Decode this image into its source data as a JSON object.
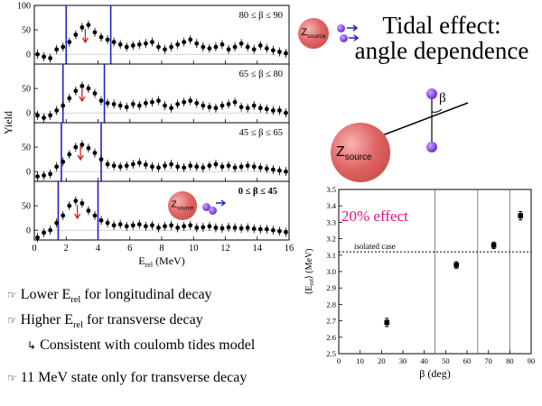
{
  "title": {
    "line1": "Tidal effect:",
    "line2": "angle dependence"
  },
  "sketch": {
    "source_label_main": "Z",
    "source_label_sub": "source",
    "angle_symbol": "β"
  },
  "bullets": [
    {
      "symbol": "☞",
      "pre": "Lower E",
      "sub": "rel",
      "post": " for longitudinal decay",
      "indent": false
    },
    {
      "symbol": "☞",
      "pre": "Higher E",
      "sub": "rel",
      "post": " for transverse decay",
      "indent": false
    },
    {
      "symbol": "↳",
      "pre": "Consistent with coulomb tides model",
      "sub": "",
      "post": "",
      "indent": true
    },
    {
      "symbol": "☞",
      "pre": "11 MeV state only for transverse decay",
      "sub": "",
      "post": "",
      "indent": false
    }
  ],
  "colors": {
    "vline": "#1f1fd6",
    "arrow": "#d42020",
    "annotation": "#e0147a",
    "ball": "#d9534f",
    "dot": "#7a3fd9"
  },
  "chart_data": [
    {
      "type": "scatter",
      "ylabel": "Yield",
      "xlabel_main": "E",
      "xlabel_sub": "rel",
      "xlabel_unit": " (MeV)",
      "xlim": [
        0,
        16
      ],
      "xticks": [
        0,
        2,
        4,
        6,
        8,
        10,
        12,
        14,
        16
      ],
      "vlines": [
        1.5,
        4.2
      ],
      "panels": [
        {
          "label": "80 ≤ β ≤ 90",
          "ylim": [
            -20,
            100
          ],
          "yticks": [
            0,
            50,
            100
          ],
          "vlines": [
            2.0,
            4.8
          ],
          "arrow_x": 3.2,
          "x": [
            0.2,
            0.6,
            1.0,
            1.4,
            1.8,
            2.2,
            2.6,
            3.0,
            3.4,
            3.8,
            4.2,
            4.6,
            5.0,
            5.4,
            5.8,
            6.2,
            6.6,
            7.0,
            7.4,
            7.8,
            8.2,
            8.6,
            9.0,
            9.4,
            9.8,
            10.2,
            10.6,
            11.0,
            11.4,
            11.8,
            12.2,
            12.6,
            13.0,
            13.4,
            13.8,
            14.2,
            14.6,
            15.0,
            15.4,
            15.8
          ],
          "y": [
            0,
            -5,
            -8,
            10,
            15,
            25,
            40,
            55,
            60,
            45,
            35,
            30,
            25,
            20,
            15,
            18,
            20,
            22,
            25,
            15,
            10,
            15,
            20,
            25,
            30,
            22,
            15,
            12,
            15,
            20,
            10,
            15,
            22,
            15,
            10,
            18,
            12,
            8,
            5,
            2
          ]
        },
        {
          "label": "65 ≤ β ≤ 80",
          "ylim": [
            -20,
            100
          ],
          "yticks": [
            0,
            50,
            100
          ],
          "vlines": [
            1.8,
            4.4
          ],
          "arrow_x": 3.0,
          "x": [
            0.2,
            0.6,
            1.0,
            1.4,
            1.8,
            2.2,
            2.6,
            3.0,
            3.4,
            3.8,
            4.2,
            4.6,
            5.0,
            5.4,
            5.8,
            6.2,
            6.6,
            7.0,
            7.4,
            7.8,
            8.2,
            8.6,
            9.0,
            9.4,
            9.8,
            10.2,
            10.6,
            11.0,
            11.4,
            11.8,
            12.2,
            12.6,
            13.0,
            13.4,
            13.8,
            14.2,
            14.6,
            15.0,
            15.4,
            15.8
          ],
          "y": [
            -5,
            -10,
            -5,
            5,
            15,
            30,
            45,
            55,
            50,
            40,
            25,
            20,
            18,
            15,
            12,
            18,
            15,
            20,
            22,
            25,
            15,
            10,
            18,
            22,
            25,
            20,
            15,
            12,
            10,
            15,
            18,
            22,
            12,
            10,
            15,
            10,
            8,
            5,
            5,
            0
          ]
        },
        {
          "label": "45 ≤ β ≤ 65",
          "ylim": [
            -20,
            100
          ],
          "yticks": [
            0,
            50,
            100
          ],
          "vlines": [
            1.7,
            4.2
          ],
          "arrow_x": 2.9,
          "x": [
            0.2,
            0.6,
            1.0,
            1.4,
            1.8,
            2.2,
            2.6,
            3.0,
            3.4,
            3.8,
            4.2,
            4.6,
            5.0,
            5.4,
            5.8,
            6.2,
            6.6,
            7.0,
            7.4,
            7.8,
            8.2,
            8.6,
            9.0,
            9.4,
            9.8,
            10.2,
            10.6,
            11.0,
            11.4,
            11.8,
            12.2,
            12.6,
            13.0,
            13.4,
            13.8,
            14.2,
            14.6,
            15.0,
            15.4,
            15.8
          ],
          "y": [
            -10,
            -8,
            -5,
            10,
            20,
            35,
            50,
            55,
            48,
            38,
            25,
            15,
            12,
            10,
            12,
            15,
            18,
            14,
            10,
            8,
            12,
            15,
            10,
            8,
            12,
            10,
            8,
            12,
            15,
            10,
            12,
            8,
            10,
            12,
            10,
            8,
            6,
            4,
            2,
            0
          ]
        },
        {
          "label": "0 ≤ β ≤ 45",
          "ylim": [
            -20,
            100
          ],
          "yticks": [
            0,
            50,
            100
          ],
          "vlines": [
            1.5,
            4.0
          ],
          "arrow_x": 2.7,
          "x": [
            0.2,
            0.6,
            1.0,
            1.4,
            1.8,
            2.2,
            2.6,
            3.0,
            3.4,
            3.8,
            4.2,
            4.6,
            5.0,
            5.4,
            5.8,
            6.2,
            6.6,
            7.0,
            7.4,
            7.8,
            8.2,
            8.6,
            9.0,
            9.4,
            9.8,
            10.2,
            10.6,
            11.0,
            11.4,
            11.8,
            12.2,
            12.6,
            13.0,
            13.4,
            13.8,
            14.2,
            14.6,
            15.0,
            15.4,
            15.8
          ],
          "y": [
            -15,
            -5,
            0,
            15,
            30,
            50,
            60,
            55,
            40,
            30,
            20,
            15,
            10,
            12,
            8,
            10,
            12,
            8,
            10,
            5,
            8,
            10,
            5,
            8,
            10,
            5,
            6,
            8,
            5,
            4,
            6,
            5,
            4,
            5,
            3,
            2,
            2,
            0,
            -2,
            -4
          ]
        }
      ]
    },
    {
      "type": "scatter",
      "annotation": "20% effect",
      "reference_label": "isolated case",
      "reference_y": 3.12,
      "xlabel": "β (deg)",
      "ylabel_main": "⟨E",
      "ylabel_sub": "rel",
      "ylabel_unit": "⟩ (MeV)",
      "xlim": [
        0,
        90
      ],
      "ylim": [
        2.5,
        3.5
      ],
      "xticks": [
        0,
        10,
        20,
        30,
        40,
        50,
        60,
        70,
        80,
        90
      ],
      "yticks": [
        2.5,
        2.6,
        2.7,
        2.8,
        2.9,
        3.0,
        3.1,
        3.2,
        3.3,
        3.4,
        3.5
      ],
      "bin_edges": [
        45,
        65,
        80
      ],
      "x": [
        22.5,
        55,
        72.5,
        85
      ],
      "y": [
        2.69,
        3.04,
        3.16,
        3.34
      ],
      "err": [
        0.025,
        0.02,
        0.02,
        0.025
      ]
    }
  ]
}
